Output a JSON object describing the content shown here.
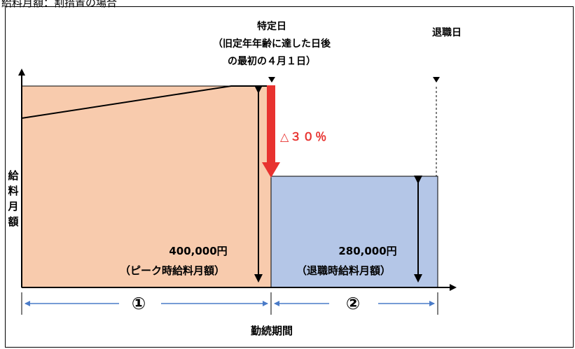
{
  "caption": "給料月額：割措置の場合",
  "y_axis_label": [
    "給",
    "料",
    "月",
    "額"
  ],
  "x_axis_label": "勤続期間",
  "specific_day": {
    "title": "特定日",
    "line2": "（旧定年年齢に達した日後",
    "line3": "の最初の４月１日）"
  },
  "retirement_day": "退職日",
  "reduction_label": "△３０％",
  "peak_salary": {
    "amount": "400,000円",
    "desc": "（ピーク時給料月額）"
  },
  "retire_salary": {
    "amount": "280,000円",
    "desc": "（退職時給料月額）"
  },
  "period_1": "①",
  "period_2": "②",
  "colors": {
    "peak_fill": "#F8CBAD",
    "retire_fill": "#B4C6E7",
    "arrow_red": "#E8322F",
    "period_arrow": "#4A7BC8",
    "reduction_text": "#E8322F"
  }
}
